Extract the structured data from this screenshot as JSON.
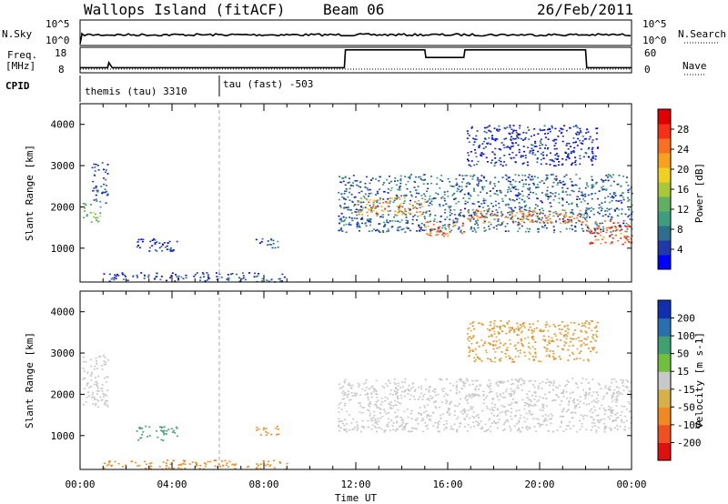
{
  "header": {
    "station": "Wallops Island (fitACF)",
    "beam": "Beam 06",
    "date": "26/Feb/2011"
  },
  "nsky_panel": {
    "left_label": "N.Sky",
    "right_label": "N.Search",
    "left_ticks": [
      "10^5",
      "10^0"
    ],
    "right_ticks": [
      "10^5",
      "10^0"
    ]
  },
  "freq_panel": {
    "left_label_line1": "Freq.",
    "left_label_line2": "[MHz]",
    "right_label": "Nave",
    "left_ticks": [
      "18",
      "8"
    ],
    "right_ticks": [
      "60",
      "0"
    ]
  },
  "cpid": {
    "label": "CPID",
    "modes": [
      {
        "text": "themis (tau) 3310",
        "start_hour": 0,
        "end_hour": 6
      },
      {
        "text": "tau (fast) -503",
        "start_hour": 6,
        "end_hour": 24
      }
    ]
  },
  "power_panel": {
    "ylabel": "Slant Range [km]",
    "yticks": [
      "4000",
      "3000",
      "2000",
      "1000"
    ],
    "colorbar_label": "Power [dB]",
    "colorbar_ticks": [
      "28",
      "24",
      "20",
      "16",
      "12",
      "8",
      "4"
    ],
    "colors": [
      "#0000ff",
      "#1f3aa8",
      "#2e6e8e",
      "#3c9e7e",
      "#60b060",
      "#a8c838",
      "#f0d020",
      "#f8a020",
      "#f87020",
      "#f83018",
      "#e00000"
    ]
  },
  "velocity_panel": {
    "ylabel": "Slant Range [km]",
    "yticks": [
      "4000",
      "3000",
      "2000",
      "1000"
    ],
    "colorbar_label": "Velocity [m s-1]",
    "colorbar_ticks": [
      "200",
      "100",
      "50",
      "15",
      "-15",
      "-50",
      "-100",
      "-200"
    ],
    "colors": [
      "#1030b0",
      "#2a70b0",
      "#40a070",
      "#70c040",
      "#c8c8c8",
      "#d8b048",
      "#f08a20",
      "#f05020",
      "#e01010"
    ]
  },
  "x_axis": {
    "label": "Time UT",
    "ticks": [
      "00:00",
      "04:00",
      "08:00",
      "12:00",
      "16:00",
      "20:00",
      "00:00"
    ]
  },
  "chart_data": {
    "type": "heatmap",
    "title": "Wallops Island (fitACF) Beam 06 26/Feb/2011",
    "xlabel": "Time UT",
    "ylabel": "Slant Range [km]",
    "xlim_hours": [
      0,
      24
    ],
    "ylim_km": [
      180,
      4500
    ],
    "freq_series": {
      "name": "Freq. [MHz]",
      "x_hours": [
        0,
        1.2,
        1.25,
        1.4,
        6.0,
        11.5,
        11.55,
        15.0,
        15.05,
        16.7,
        16.75,
        22.0,
        22.05,
        24
      ],
      "values": [
        10,
        10,
        12,
        10,
        10,
        10,
        17,
        17,
        14,
        14,
        17,
        17,
        10,
        10
      ],
      "ylim": [
        8,
        18
      ]
    },
    "nave_series": {
      "name": "Nave",
      "value": 0,
      "ylim": [
        0,
        60
      ]
    },
    "power_regions": [
      {
        "t0": 0.1,
        "t1": 0.9,
        "r0": 1650,
        "r1": 2100,
        "power_db": 14
      },
      {
        "t0": 0.5,
        "t1": 1.2,
        "r0": 2100,
        "r1": 3100,
        "power_db": 6
      },
      {
        "t0": 2.4,
        "t1": 4.2,
        "r0": 900,
        "r1": 1250,
        "power_db": 5
      },
      {
        "t0": 7.6,
        "t1": 8.6,
        "r0": 1000,
        "r1": 1250,
        "power_db": 6
      },
      {
        "t0": 1.0,
        "t1": 9.0,
        "r0": 200,
        "r1": 420,
        "power_db": 6
      },
      {
        "t0": 11.2,
        "t1": 24.0,
        "r0": 1400,
        "r1": 2800,
        "power_db": 8
      },
      {
        "t0": 12.0,
        "t1": 15.0,
        "r0": 1800,
        "r1": 2250,
        "power_db": 22
      },
      {
        "t0": 15.0,
        "t1": 16.7,
        "r0": 1300,
        "r1": 1650,
        "power_db": 24
      },
      {
        "t0": 16.7,
        "t1": 21.9,
        "r0": 1600,
        "r1": 1950,
        "power_db": 24
      },
      {
        "t0": 21.9,
        "t1": 24.0,
        "r0": 1100,
        "r1": 1700,
        "power_db": 26
      },
      {
        "t0": 16.8,
        "t1": 22.5,
        "r0": 3000,
        "r1": 4000,
        "power_db": 5
      }
    ],
    "velocity_regions": [
      {
        "t0": 0.1,
        "t1": 1.2,
        "r0": 1650,
        "r1": 3000,
        "velocity": 0
      },
      {
        "t0": 2.4,
        "t1": 4.2,
        "r0": 900,
        "r1": 1250,
        "velocity": 40
      },
      {
        "t0": 7.6,
        "t1": 8.6,
        "r0": 1000,
        "r1": 1250,
        "velocity": -40
      },
      {
        "t0": 1.0,
        "t1": 9.0,
        "r0": 200,
        "r1": 420,
        "velocity": -60
      },
      {
        "t0": 11.2,
        "t1": 24.0,
        "r0": 1100,
        "r1": 2400,
        "velocity": 0
      },
      {
        "t0": 16.8,
        "t1": 22.5,
        "r0": 2800,
        "r1": 3800,
        "velocity": -30
      }
    ]
  }
}
